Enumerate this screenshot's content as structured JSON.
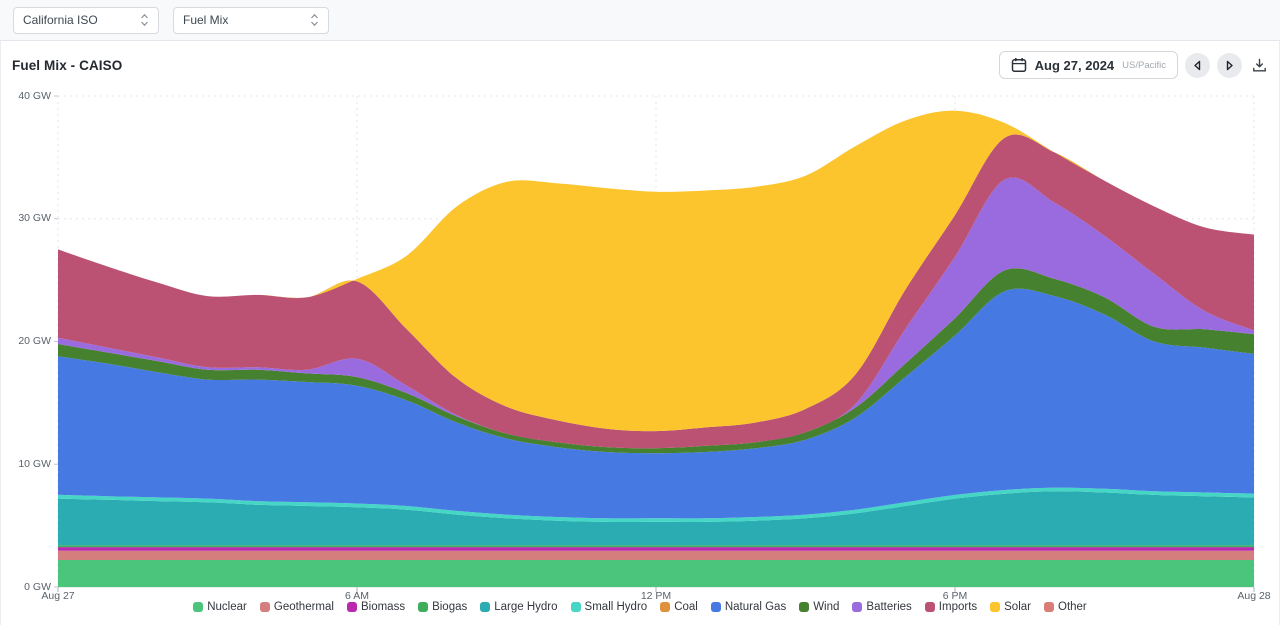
{
  "toolbar": {
    "region_select": {
      "value": "California ISO"
    },
    "view_select": {
      "value": "Fuel Mix"
    }
  },
  "header": {
    "title": "Fuel Mix - CAISO",
    "date_label": "Aug 27, 2024",
    "timezone_label": "US/Pacific"
  },
  "chart_data": {
    "type": "area",
    "stacked": true,
    "title": "Fuel Mix - CAISO",
    "y_unit": "GW",
    "ylim": [
      0,
      40
    ],
    "grid": "dashed",
    "legend_position": "bottom",
    "x_unit": "hours since Aug 27 00:00 US/Pacific",
    "x": [
      0,
      1,
      2,
      3,
      4,
      5,
      6,
      7,
      8,
      9,
      10,
      11,
      12,
      13,
      14,
      15,
      16,
      17,
      18,
      19,
      20,
      21,
      22,
      23,
      24
    ],
    "x_ticks": [
      {
        "hour": 0,
        "label": "Aug 27"
      },
      {
        "hour": 6,
        "label": "6 AM"
      },
      {
        "hour": 12,
        "label": "12 PM"
      },
      {
        "hour": 18,
        "label": "6 PM"
      },
      {
        "hour": 24,
        "label": "Aug 28"
      }
    ],
    "y_ticks": [
      {
        "value": 0,
        "label": "0 GW"
      },
      {
        "value": 10,
        "label": "10 GW"
      },
      {
        "value": 20,
        "label": "20 GW"
      },
      {
        "value": 30,
        "label": "30 GW"
      },
      {
        "value": 40,
        "label": "40 GW"
      }
    ],
    "series": [
      {
        "name": "Nuclear",
        "color": "#4bc47c",
        "values": [
          2.2,
          2.2,
          2.2,
          2.2,
          2.2,
          2.2,
          2.2,
          2.2,
          2.2,
          2.2,
          2.2,
          2.2,
          2.2,
          2.2,
          2.2,
          2.2,
          2.2,
          2.2,
          2.2,
          2.2,
          2.2,
          2.2,
          2.2,
          2.2,
          2.2
        ]
      },
      {
        "name": "Geothermal",
        "color": "#d47e7e",
        "values": [
          0.75,
          0.75,
          0.75,
          0.75,
          0.75,
          0.75,
          0.75,
          0.75,
          0.75,
          0.75,
          0.75,
          0.75,
          0.75,
          0.75,
          0.75,
          0.75,
          0.75,
          0.75,
          0.75,
          0.75,
          0.75,
          0.75,
          0.75,
          0.75,
          0.75
        ]
      },
      {
        "name": "Biomass",
        "color": "#ba28ae",
        "values": [
          0.3,
          0.3,
          0.3,
          0.3,
          0.3,
          0.3,
          0.3,
          0.3,
          0.3,
          0.3,
          0.3,
          0.3,
          0.3,
          0.3,
          0.3,
          0.3,
          0.3,
          0.3,
          0.3,
          0.3,
          0.3,
          0.3,
          0.3,
          0.3,
          0.3
        ]
      },
      {
        "name": "Biogas",
        "color": "#3fae5c",
        "values": [
          0.15,
          0.15,
          0.15,
          0.15,
          0.15,
          0.15,
          0.15,
          0.15,
          0.15,
          0.15,
          0.15,
          0.15,
          0.15,
          0.15,
          0.15,
          0.15,
          0.15,
          0.15,
          0.15,
          0.15,
          0.15,
          0.15,
          0.15,
          0.15,
          0.15
        ]
      },
      {
        "name": "Large Hydro",
        "color": "#2aacb2",
        "values": [
          3.8,
          3.7,
          3.6,
          3.5,
          3.3,
          3.2,
          3.1,
          2.9,
          2.5,
          2.2,
          2.0,
          1.9,
          1.9,
          1.9,
          2.0,
          2.2,
          2.6,
          3.2,
          3.8,
          4.2,
          4.4,
          4.3,
          4.1,
          4.0,
          3.9
        ]
      },
      {
        "name": "Small Hydro",
        "color": "#45d6c5",
        "values": [
          0.3,
          0.3,
          0.3,
          0.3,
          0.3,
          0.3,
          0.3,
          0.3,
          0.3,
          0.3,
          0.3,
          0.3,
          0.3,
          0.3,
          0.3,
          0.3,
          0.3,
          0.3,
          0.3,
          0.3,
          0.3,
          0.3,
          0.3,
          0.3,
          0.3
        ]
      },
      {
        "name": "Coal",
        "color": "#e0913c",
        "values": [
          0,
          0,
          0,
          0,
          0,
          0,
          0,
          0,
          0,
          0,
          0,
          0,
          0,
          0,
          0,
          0,
          0,
          0,
          0,
          0,
          0,
          0,
          0,
          0,
          0
        ]
      },
      {
        "name": "Natural Gas",
        "color": "#4679e2",
        "values": [
          11.3,
          10.8,
          10.2,
          9.7,
          9.9,
          9.8,
          9.6,
          8.6,
          7.2,
          6.2,
          5.7,
          5.4,
          5.3,
          5.4,
          5.6,
          6.1,
          7.5,
          10.2,
          13.0,
          16.2,
          15.6,
          14.2,
          12.2,
          11.8,
          11.4
        ]
      },
      {
        "name": "Wind",
        "color": "#45812f",
        "values": [
          1.0,
          0.9,
          0.9,
          0.8,
          0.8,
          0.7,
          0.7,
          0.6,
          0.5,
          0.4,
          0.4,
          0.4,
          0.4,
          0.5,
          0.5,
          0.6,
          0.8,
          1.1,
          1.4,
          1.7,
          1.4,
          1.4,
          1.2,
          1.5,
          1.6
        ]
      },
      {
        "name": "Batteries",
        "color": "#9a6adf",
        "values": [
          0.5,
          0.4,
          0.3,
          0.2,
          0.2,
          0.3,
          1.5,
          0.6,
          0.1,
          0,
          0,
          0,
          0,
          0,
          0,
          0,
          0.3,
          2.8,
          5.0,
          7.4,
          6.2,
          5.0,
          4.3,
          1.5,
          0.3
        ]
      },
      {
        "name": "Imports",
        "color": "#bb5273",
        "values": [
          7.2,
          6.6,
          6.1,
          5.8,
          5.9,
          5.9,
          6.3,
          4.6,
          3.0,
          2.2,
          1.8,
          1.5,
          1.4,
          1.5,
          1.6,
          1.9,
          2.4,
          3.2,
          3.4,
          3.4,
          4.1,
          4.5,
          5.5,
          6.8,
          7.8
        ]
      },
      {
        "name": "Solar",
        "color": "#fcc52d",
        "values": [
          0,
          0,
          0,
          0,
          0,
          0,
          0.2,
          6.0,
          14.0,
          18.3,
          19.3,
          19.6,
          19.5,
          19.3,
          19.2,
          19.0,
          18.6,
          13.8,
          8.5,
          1.2,
          0,
          0,
          0,
          0,
          0
        ]
      },
      {
        "name": "Other",
        "color": "#d97d76",
        "values": [
          0,
          0,
          0,
          0,
          0,
          0,
          0,
          0,
          0,
          0,
          0,
          0,
          0,
          0,
          0,
          0,
          0,
          0,
          0,
          0,
          0,
          0,
          0,
          0,
          0
        ]
      }
    ]
  }
}
